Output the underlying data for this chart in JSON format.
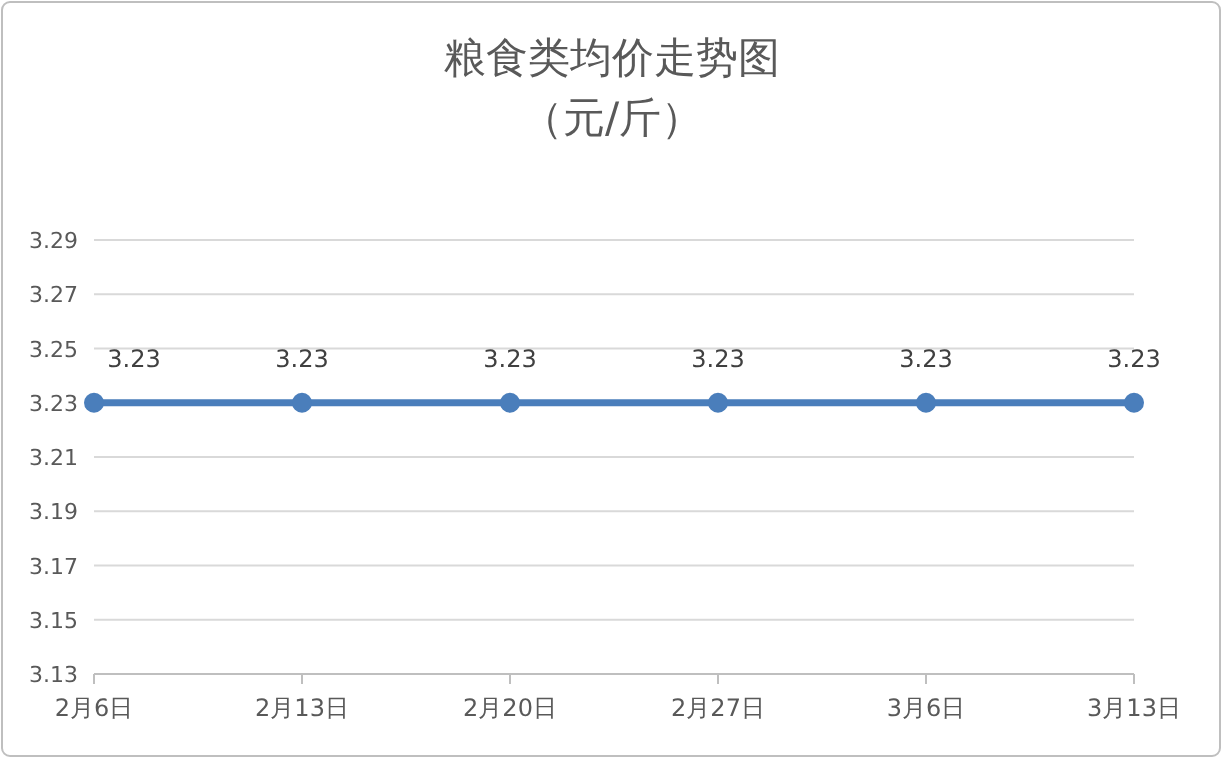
{
  "chart_data": {
    "type": "line",
    "title": "粮食类均价走势图",
    "subtitle": "（元/斤）",
    "categories": [
      "2月6日",
      "2月13日",
      "2月20日",
      "2月27日",
      "3月6日",
      "3月13日"
    ],
    "series": [
      {
        "color": "#4a7ebb",
        "values": [
          3.23,
          3.23,
          3.23,
          3.23,
          3.23,
          3.23
        ]
      }
    ],
    "ylim": [
      3.13,
      3.29
    ],
    "yticks": [
      3.13,
      3.15,
      3.17,
      3.19,
      3.21,
      3.23,
      3.25,
      3.27,
      3.29
    ],
    "grid": "y",
    "marker": "circle",
    "line_style": "solid",
    "data_labels": true
  }
}
